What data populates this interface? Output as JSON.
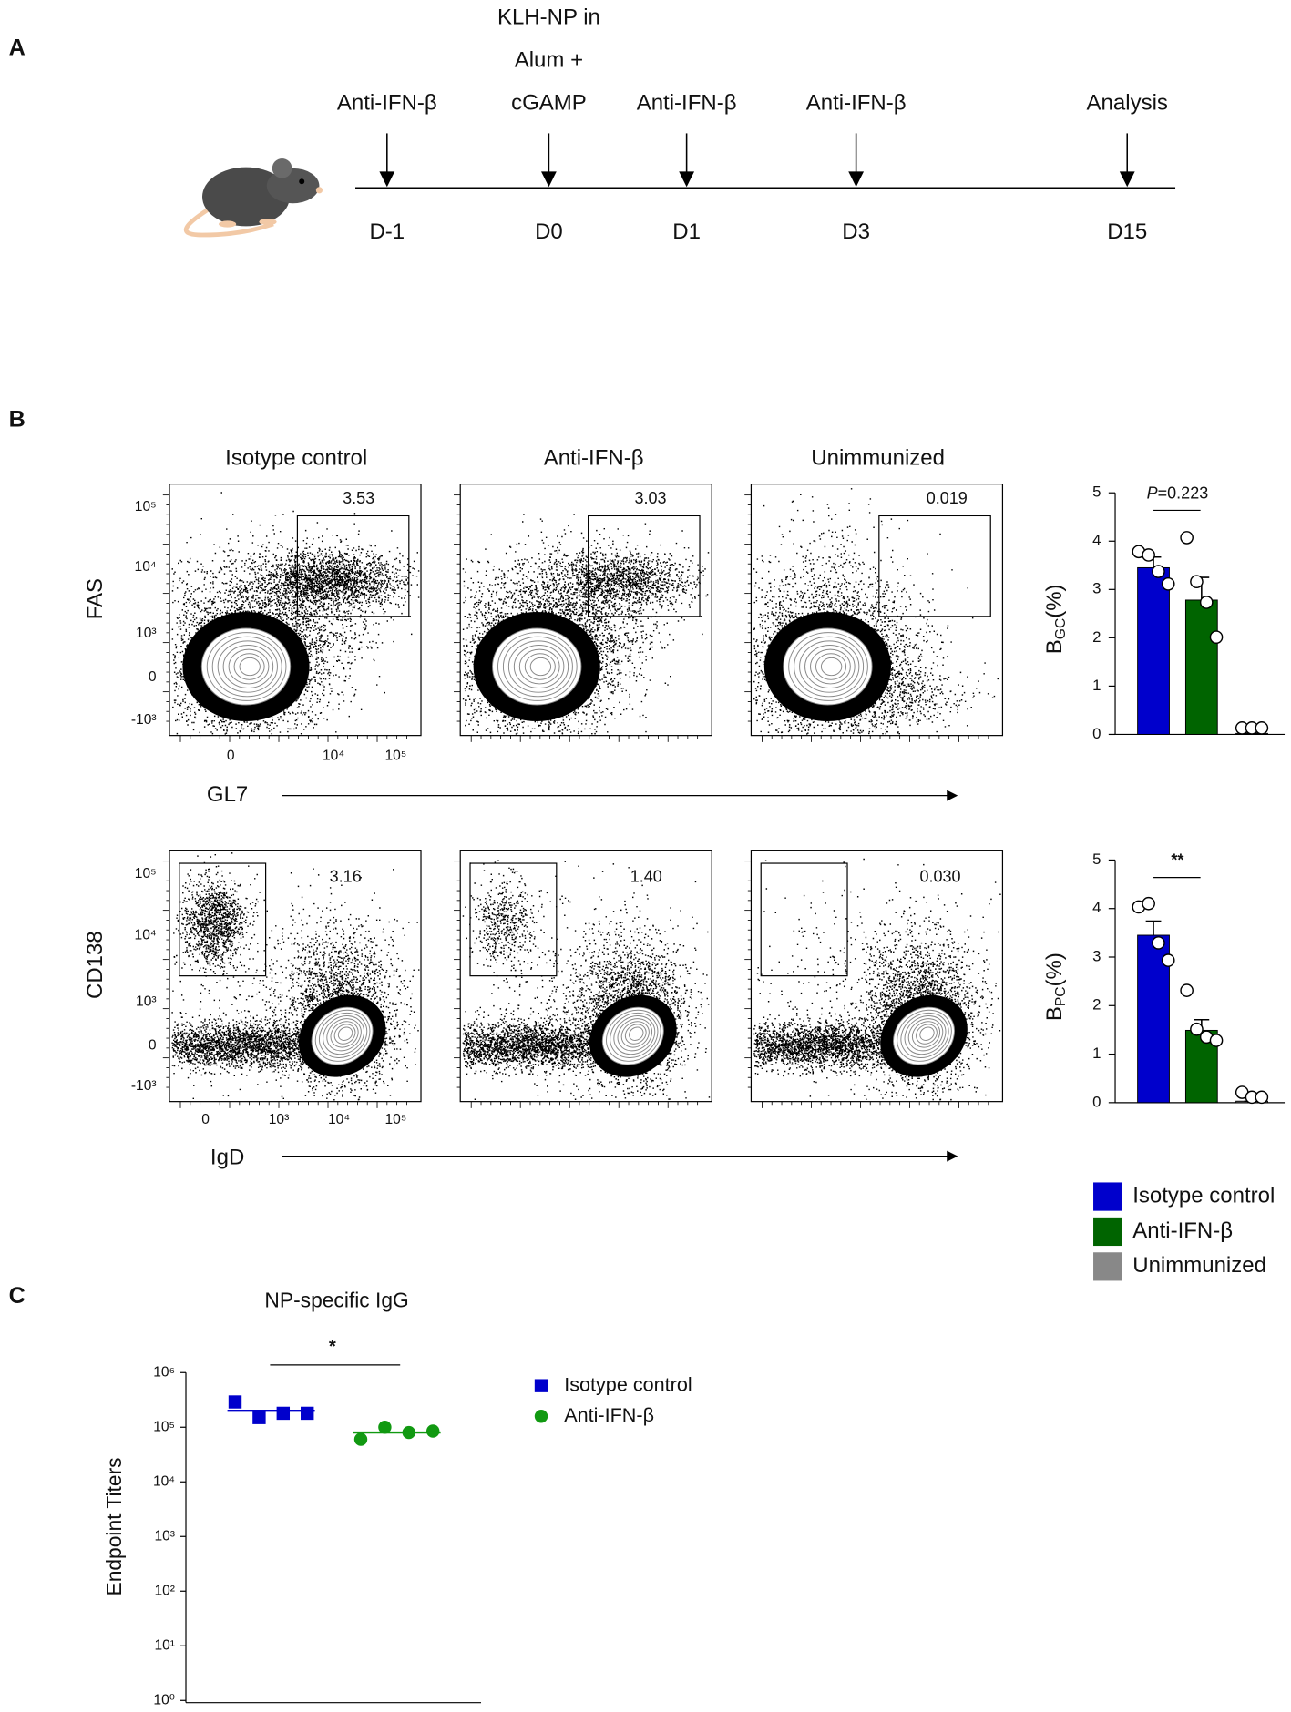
{
  "panel_labels": [
    "A",
    "B",
    "C"
  ],
  "timeline": {
    "events": [
      {
        "label": [
          "Anti-IFN-β"
        ],
        "day": "D-1"
      },
      {
        "label": [
          "KLH-NP in",
          "Alum +",
          "cGAMP"
        ],
        "day": "D0"
      },
      {
        "label": [
          "Anti-IFN-β"
        ],
        "day": "D1"
      },
      {
        "label": [
          "Anti-IFN-β"
        ],
        "day": "D3"
      },
      {
        "label": [
          "Analysis"
        ],
        "day": "D15"
      }
    ]
  },
  "flow": {
    "columns": [
      "Isotype control",
      "Anti-IFN-β",
      "Unimmunized"
    ],
    "rows": [
      {
        "y_label": "FAS",
        "x_label": "GL7",
        "y_ticks": [
          "10⁵",
          "10⁴",
          "10³",
          "0",
          "-10³"
        ],
        "x_ticks": [
          "0",
          "10⁴",
          "10⁵"
        ],
        "gates": [
          "3.53",
          "3.03",
          "0.019"
        ]
      },
      {
        "y_label": "CD138",
        "x_label": "IgD",
        "y_ticks": [
          "10⁵",
          "10⁴",
          "10³",
          "0",
          "-10³"
        ],
        "x_ticks": [
          "0",
          "10³",
          "10⁴",
          "10⁵"
        ],
        "gates": [
          "3.16",
          "1.40",
          "0.030"
        ]
      }
    ]
  },
  "chart_data": [
    {
      "type": "bar",
      "ylabel": {
        "main": "B",
        "sub": "GC",
        "rest": "(%)"
      },
      "ylim": [
        0,
        5
      ],
      "yticks": [
        0,
        1,
        2,
        3,
        4,
        5
      ],
      "annotation": {
        "italic": "P",
        "text": "=0.223"
      },
      "series": [
        {
          "name": "Isotype control",
          "color": "#0000cc",
          "values": [
            3.45
          ],
          "errors": [
            0.22
          ],
          "points": [
            3.67,
            3.6,
            3.26,
            3.0
          ]
        },
        {
          "name": "Anti-IFN-β",
          "color": "#006400",
          "values": [
            2.78
          ],
          "errors": [
            0.47
          ],
          "points": [
            3.96,
            3.05,
            2.62,
            1.9
          ]
        },
        {
          "name": "Unimmunized",
          "color": "#888888",
          "values": [
            0.02
          ],
          "errors": [
            0
          ],
          "points": [
            0.02,
            0.02,
            0.02
          ]
        }
      ]
    },
    {
      "type": "bar",
      "ylabel": {
        "main": "B",
        "sub": "PC",
        "rest": "(%)"
      },
      "ylim": [
        0,
        5
      ],
      "yticks": [
        0,
        1,
        2,
        3,
        4,
        5
      ],
      "annotation": {
        "text": "**"
      },
      "series": [
        {
          "color": "#0000cc",
          "values": [
            3.45
          ],
          "errors": [
            0.29
          ],
          "points": [
            3.92,
            3.99,
            3.18,
            2.82
          ]
        },
        {
          "color": "#006400",
          "values": [
            1.49
          ],
          "errors": [
            0.22
          ],
          "points": [
            2.2,
            1.4,
            1.24,
            1.17
          ]
        },
        {
          "color": "#888888",
          "values": [
            0.03
          ],
          "errors": [
            0
          ],
          "points": [
            0.1,
            0,
            0
          ]
        }
      ]
    },
    {
      "type": "scatter",
      "title": "NP-specific IgG",
      "ylabel": "Endpoint Titers",
      "log": true,
      "ylim": [
        1,
        1000000
      ],
      "yticks": [
        {
          "value": 1,
          "label": "10⁰"
        },
        {
          "value": 10,
          "label": "10¹"
        },
        {
          "value": 100,
          "label": "10²"
        },
        {
          "value": 1000,
          "label": "10³"
        },
        {
          "value": 10000,
          "label": "10⁴"
        },
        {
          "value": 100000,
          "label": "10⁵"
        },
        {
          "value": 1000000,
          "label": "10⁶"
        }
      ],
      "annotation": {
        "text": "*"
      },
      "series": [
        {
          "name": "Isotype control",
          "color": "#0000cc",
          "marker": "square",
          "values": [
            290000,
            150000,
            180000,
            180000
          ],
          "mean": 200000
        },
        {
          "name": "Anti-IFN-β",
          "color": "#119911",
          "marker": "circle",
          "values": [
            60000,
            100000,
            80000,
            85000
          ],
          "mean": 80000
        }
      ]
    }
  ]
}
